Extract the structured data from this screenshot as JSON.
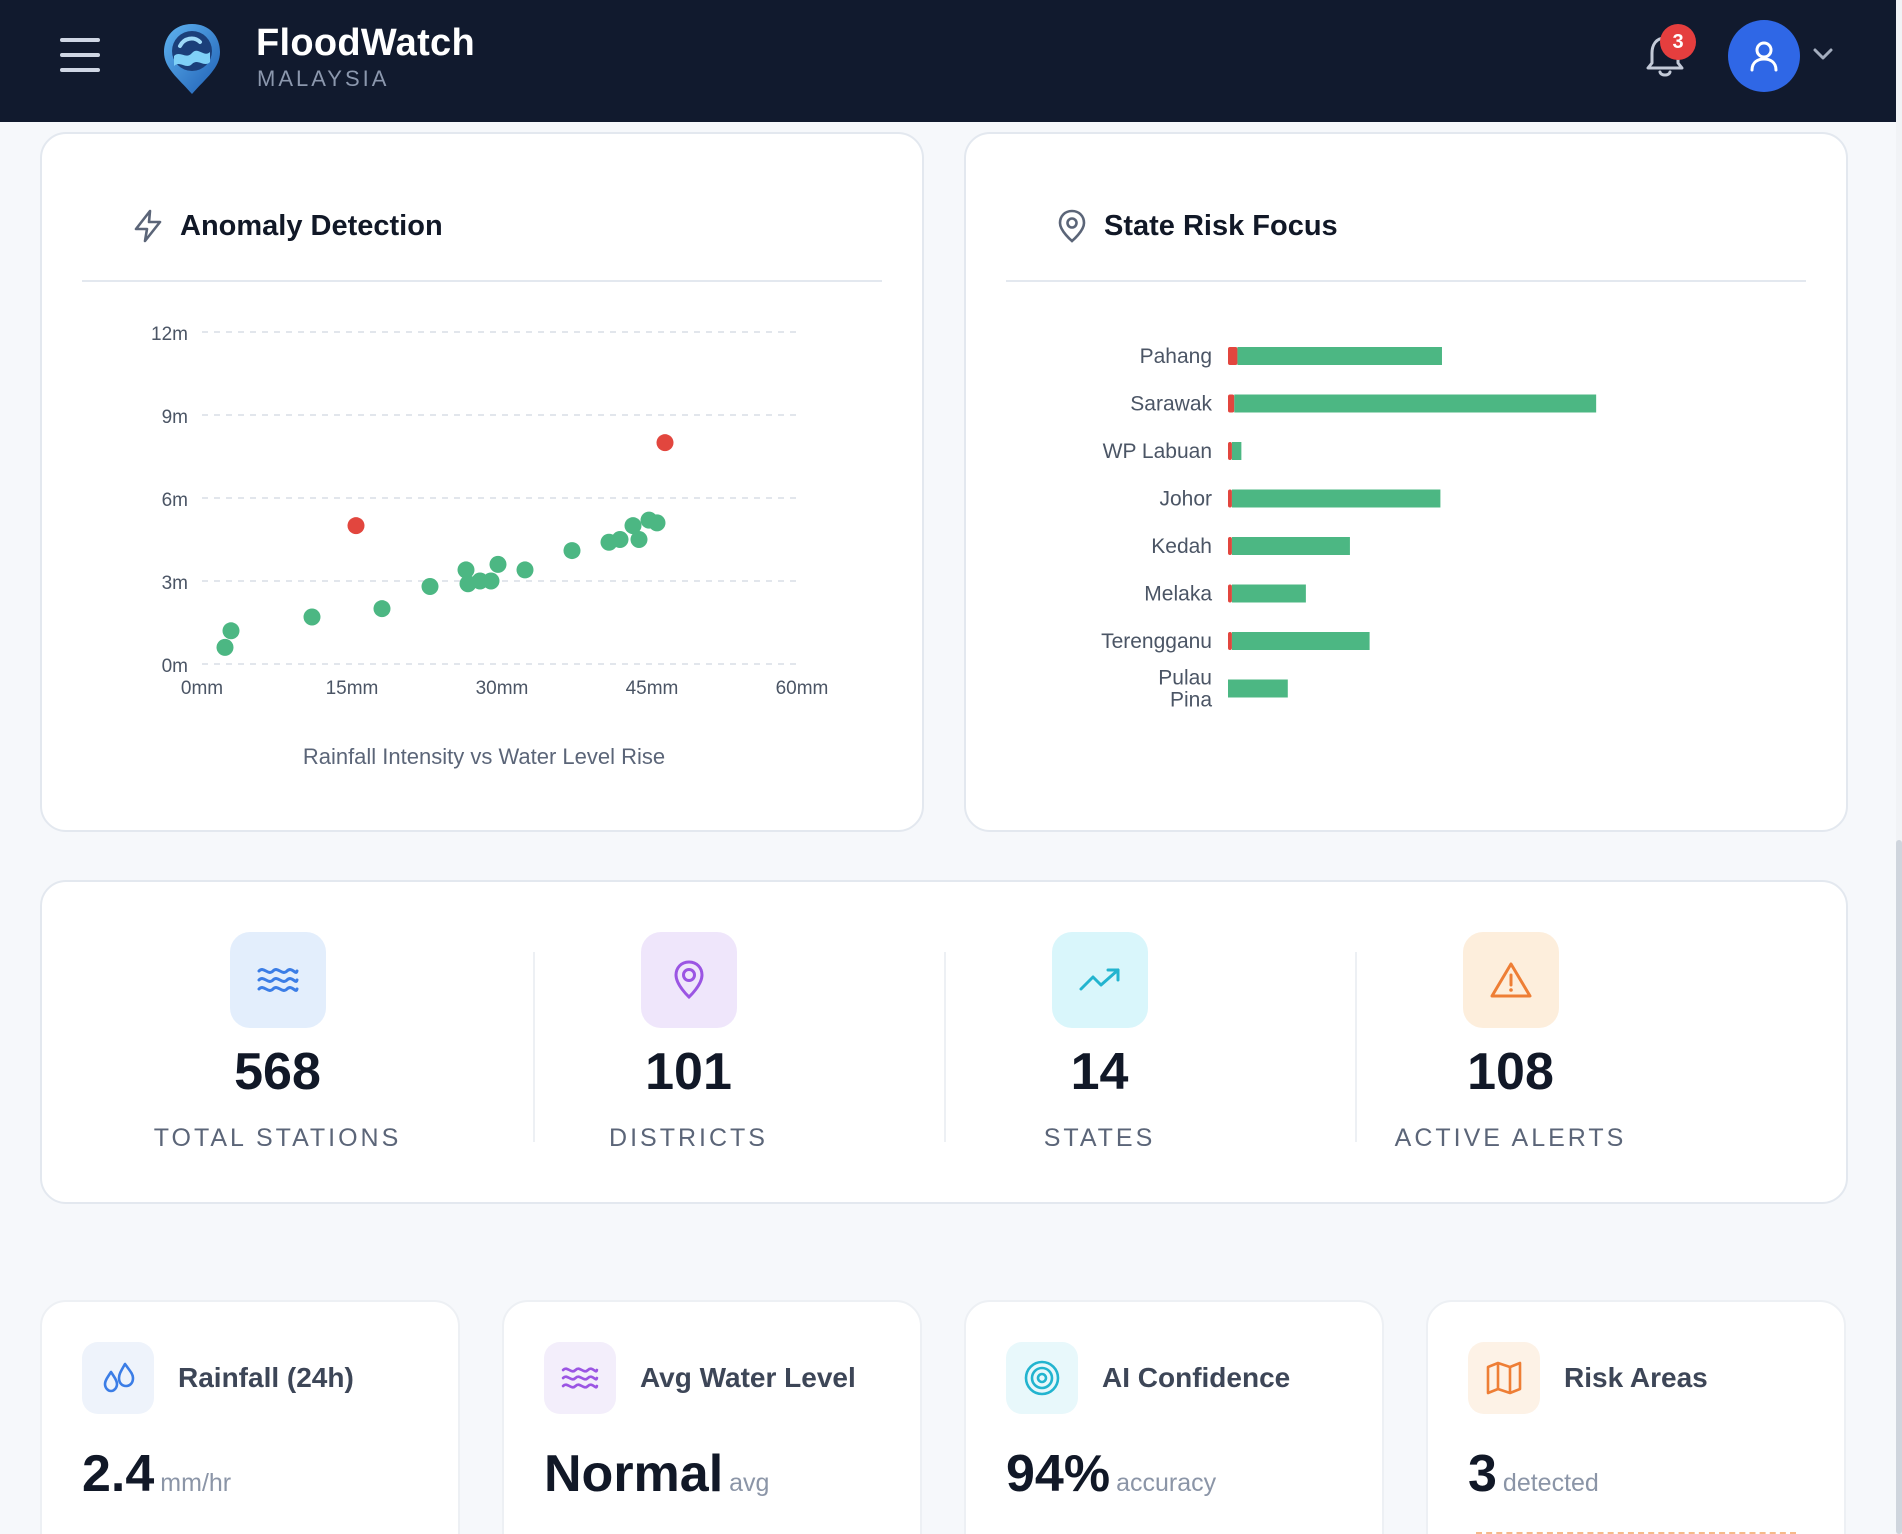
{
  "header": {
    "app_title": "FloodWatch",
    "app_subtitle": "MALAYSIA",
    "notification_count": "3"
  },
  "anomaly_card": {
    "title": "Anomaly Detection",
    "caption": "Rainfall Intensity vs Water Level Rise"
  },
  "state_risk_card": {
    "title": "State Risk Focus"
  },
  "chart_data": [
    {
      "type": "scatter",
      "title": "Anomaly Detection",
      "caption": "Rainfall Intensity vs Water Level Rise",
      "xlabel": "",
      "ylabel": "",
      "xlim": [
        0,
        60
      ],
      "ylim": [
        0,
        12
      ],
      "x_ticks": [
        "0mm",
        "15mm",
        "30mm",
        "45mm",
        "60mm"
      ],
      "y_ticks": [
        "0m",
        "3m",
        "6m",
        "9m",
        "12m"
      ],
      "grid": true,
      "colors": {
        "normal": "#4cb783",
        "anomaly": "#e2463e"
      },
      "points": [
        {
          "x": 2.3,
          "y": 0.6,
          "anomaly": false
        },
        {
          "x": 2.9,
          "y": 1.2,
          "anomaly": false
        },
        {
          "x": 11.0,
          "y": 1.7,
          "anomaly": false
        },
        {
          "x": 18.0,
          "y": 2.0,
          "anomaly": false
        },
        {
          "x": 22.8,
          "y": 2.8,
          "anomaly": false
        },
        {
          "x": 26.4,
          "y": 3.4,
          "anomaly": false
        },
        {
          "x": 26.6,
          "y": 2.9,
          "anomaly": false
        },
        {
          "x": 27.8,
          "y": 3.0,
          "anomaly": false
        },
        {
          "x": 28.9,
          "y": 3.0,
          "anomaly": false
        },
        {
          "x": 29.6,
          "y": 3.6,
          "anomaly": false
        },
        {
          "x": 32.3,
          "y": 3.4,
          "anomaly": false
        },
        {
          "x": 37.0,
          "y": 4.1,
          "anomaly": false
        },
        {
          "x": 40.7,
          "y": 4.4,
          "anomaly": false
        },
        {
          "x": 41.8,
          "y": 4.5,
          "anomaly": false
        },
        {
          "x": 43.1,
          "y": 5.0,
          "anomaly": false
        },
        {
          "x": 43.7,
          "y": 4.5,
          "anomaly": false
        },
        {
          "x": 44.7,
          "y": 5.2,
          "anomaly": false
        },
        {
          "x": 45.5,
          "y": 5.1,
          "anomaly": false
        },
        {
          "x": 15.4,
          "y": 5.0,
          "anomaly": true
        },
        {
          "x": 46.3,
          "y": 8.0,
          "anomaly": true
        }
      ]
    },
    {
      "type": "bar",
      "orientation": "horizontal",
      "title": "State Risk Focus",
      "categories": [
        "Pahang",
        "Sarawak",
        "WP Labuan",
        "Johor",
        "Kedah",
        "Melaka",
        "Terengganu",
        "Pulau Pina"
      ],
      "series": [
        {
          "color": "#e2463e",
          "values": [
            1.2,
            0.8,
            0.5,
            0.5,
            0.5,
            0.5,
            0.5,
            0
          ]
        },
        {
          "color": "#4cb783",
          "values": [
            26,
            46,
            1.2,
            26.5,
            15,
            9.4,
            17.5,
            7.6
          ]
        }
      ],
      "xlim": [
        0,
        60
      ]
    }
  ],
  "stats": [
    {
      "value": "568",
      "label": "TOTAL STATIONS",
      "icon": "waves-icon",
      "bg": "#e3eefc",
      "fg": "#3b7de6"
    },
    {
      "value": "101",
      "label": "DISTRICTS",
      "icon": "map-pin-icon",
      "bg": "#efe6fb",
      "fg": "#9b55e3"
    },
    {
      "value": "14",
      "label": "STATES",
      "icon": "trending-up-icon",
      "bg": "#d9f6fb",
      "fg": "#22b4cf"
    },
    {
      "value": "108",
      "label": "ACTIVE ALERTS",
      "icon": "alert-triangle-icon",
      "bg": "#fdeedc",
      "fg": "#ee7e35"
    }
  ],
  "metrics": [
    {
      "title": "Rainfall (24h)",
      "value": "2.4",
      "unit": "mm/hr",
      "icon": "droplets-icon",
      "bg": "#eef3fb",
      "fg": "#3b7de6"
    },
    {
      "title": "Avg Water Level",
      "value": "Normal",
      "unit": "avg",
      "icon": "waves-icon",
      "bg": "#f3eefb",
      "fg": "#9b55e3"
    },
    {
      "title": "AI Confidence",
      "value": "94%",
      "unit": "accuracy",
      "icon": "target-icon",
      "bg": "#e8f8fb",
      "fg": "#22b4cf"
    },
    {
      "title": "Risk Areas",
      "value": "3",
      "unit": "detected",
      "icon": "map-icon",
      "bg": "#fdf2e6",
      "fg": "#ee7e35"
    }
  ]
}
